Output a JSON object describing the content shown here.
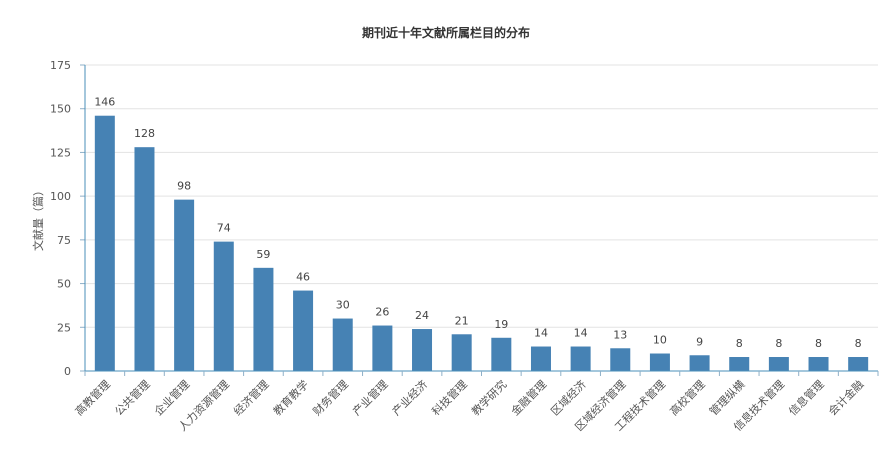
{
  "chart_data": {
    "type": "bar",
    "title": "期刊近十年文献所属栏目的分布",
    "ylabel": "文献量（篇）",
    "xlabel": "",
    "ylim": [
      0,
      175
    ],
    "yticks": [
      0,
      25,
      50,
      75,
      100,
      125,
      150,
      175
    ],
    "grid": true,
    "bar_color": "#4682b4",
    "categories": [
      "高教管理",
      "公共管理",
      "企业管理",
      "人力资源管理",
      "经济管理",
      "教育教学",
      "财务管理",
      "产业管理",
      "产业经济",
      "科技管理",
      "教学研究",
      "金融管理",
      "区域经济",
      "区域经济管理",
      "工程技术管理",
      "高校管理",
      "管理纵横",
      "信息技术管理",
      "信息管理",
      "会计金融"
    ],
    "values": [
      146,
      128,
      98,
      74,
      59,
      46,
      30,
      26,
      24,
      21,
      19,
      14,
      14,
      13,
      10,
      9,
      8,
      8,
      8,
      8
    ]
  }
}
